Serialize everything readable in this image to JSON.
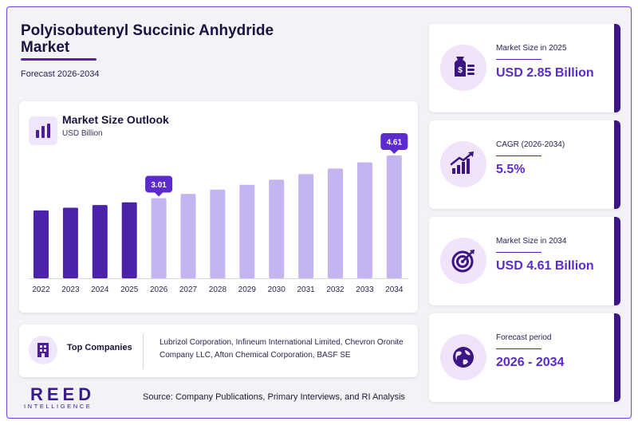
{
  "header": {
    "title_line1": "Polyisobutenyl Succinic Anhydride",
    "title_line2": "Market",
    "subtitle": "Forecast 2026-2034"
  },
  "chart_card": {
    "title": "Market Size Outlook",
    "unit": "USD Billion"
  },
  "chart_data": {
    "type": "bar",
    "title": "Market Size Outlook",
    "ylabel": "USD Billion",
    "categories": [
      "2022",
      "2023",
      "2024",
      "2025",
      "2026",
      "2027",
      "2028",
      "2029",
      "2030",
      "2031",
      "2032",
      "2033",
      "2034"
    ],
    "values": [
      2.55,
      2.65,
      2.75,
      2.85,
      3.01,
      3.17,
      3.33,
      3.51,
      3.7,
      3.91,
      4.12,
      4.35,
      4.61
    ],
    "ylim": [
      0,
      4.61
    ],
    "historical_color": "#4b23a8",
    "forecast_color": "#c4b5f0",
    "callouts": [
      {
        "category": "2026",
        "label": "3.01"
      },
      {
        "category": "2034",
        "label": "4.61"
      }
    ],
    "callout_color": "#5b2bd0",
    "grid": false
  },
  "companies": {
    "label": "Top Companies",
    "text": "Lubrizol Corporation, Infineum International Limited, Chevron Oronite Company LLC, Afton Chemical Corporation, BASF SE"
  },
  "stats": [
    {
      "label": "Market Size in 2025",
      "value": "USD 2.85 Billion",
      "icon": "money-bag-icon"
    },
    {
      "label": "CAGR (2026-2034)",
      "value": "5.5%",
      "icon": "growth-chart-icon"
    },
    {
      "label": "Market Size in 2034",
      "value": "USD 4.61 Billion",
      "icon": "target-icon"
    },
    {
      "label": "Forecast period",
      "value": "2026 - 2034",
      "icon": "globe-icon"
    }
  ],
  "logo": {
    "main": "REED",
    "sub": "INTELLIGENCE"
  },
  "source": "Source: Company Publications, Primary Interviews, and RI Analysis",
  "colors": {
    "accent": "#5a2bc8",
    "dark": "#3b1584",
    "icon_bg": "#f0e3fa"
  }
}
